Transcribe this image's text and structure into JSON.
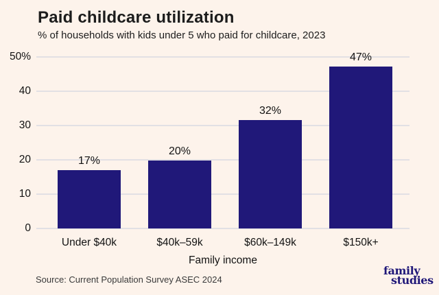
{
  "header": {
    "title": "Paid childcare utilization",
    "subtitle": "% of households with kids under 5 who paid for childcare, 2023"
  },
  "chart_data": {
    "type": "bar",
    "categories": [
      "Under $40k",
      "$40k–59k",
      "$60k–149k",
      "$150k+"
    ],
    "values": [
      17,
      19.8,
      31.7,
      47.3
    ],
    "value_labels": [
      "17%",
      "20%",
      "32%",
      "47%"
    ],
    "title": "Paid childcare utilization",
    "subtitle": "% of households with kids under 5 who paid for childcare, 2023",
    "xlabel": "Family income",
    "ylabel": "",
    "ylim": [
      0,
      50
    ],
    "yticks": [
      0,
      10,
      20,
      30,
      40,
      50
    ],
    "ytick_labels": [
      "0",
      "10",
      "20",
      "30",
      "40",
      "50%"
    ],
    "grid": true,
    "legend": false
  },
  "footer": {
    "source": "Source: Current Population Survey ASEC 2024",
    "logo_line1": "family",
    "logo_line2": "studies"
  },
  "colors": {
    "background": "#fdf3eb",
    "bar": "#201879",
    "gridline": "#e2e0e4",
    "text": "#121212",
    "logo": "#201879"
  }
}
